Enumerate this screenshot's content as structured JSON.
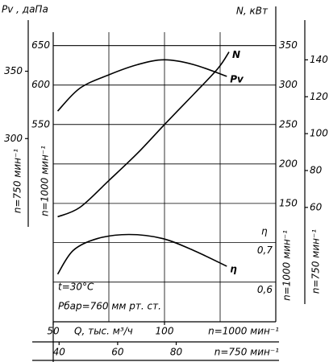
{
  "chart_data": {
    "type": "line",
    "y_title": "Pv , даПа",
    "y2_title": "N, кВт",
    "xlabel": "Q, тыс. м³/ч",
    "x_speed_label": "n=1000 мин⁻¹",
    "xlim": [
      50,
      150
    ],
    "xticks": [
      50,
      100
    ],
    "xgrid": [
      50,
      75,
      100,
      125,
      150
    ],
    "x750": {
      "label": "n=750 мин⁻¹",
      "xlim": [
        38,
        114
      ],
      "xticks": [
        40,
        60,
        80
      ]
    },
    "ylim": [
      300,
      667
    ],
    "yticks": [
      550,
      600,
      650
    ],
    "y_speed_label": "n=1000 мин⁻¹",
    "y750": {
      "label": "n=750 мин⁻¹",
      "ylim": [
        164,
        379
      ],
      "yticks": [
        300,
        350
      ]
    },
    "y2lim": [
      0,
      367
    ],
    "y2ticks": [
      150,
      200,
      250,
      300,
      350
    ],
    "y2_speed_label": "n=1000 мин⁻¹",
    "y2_750": {
      "label": "n=750 мин⁻¹",
      "ylim": [
        -2,
        155
      ],
      "yticks": [
        60,
        80,
        100,
        120,
        140
      ]
    },
    "y3_title": "η",
    "y3lim": [
      0.5,
      1.23
    ],
    "y3ticks": [
      {
        "value": 0.6,
        "label": "0,6"
      },
      {
        "value": 0.7,
        "label": "0,7"
      }
    ],
    "series": [
      {
        "name": "N",
        "axis": "y2",
        "x": [
          52,
          62,
          75,
          88,
          100,
          113,
          124,
          129
        ],
        "values": [
          133,
          145,
          179,
          214,
          250,
          288,
          321,
          342
        ]
      },
      {
        "name": "Pv",
        "axis": "y",
        "x": [
          52,
          62,
          75,
          88,
          100,
          113,
          128
        ],
        "values": [
          567,
          596,
          613,
          626,
          632,
          626,
          611
        ]
      },
      {
        "name": "η",
        "axis": "y3",
        "x": [
          52,
          59,
          70,
          84,
          99,
          113,
          128
        ],
        "values": [
          0.62,
          0.68,
          0.71,
          0.72,
          0.71,
          0.68,
          0.64
        ]
      }
    ],
    "annotations": [
      "t=30°C",
      "Pбар=760 мм рт. ст."
    ],
    "color": "#000000"
  }
}
